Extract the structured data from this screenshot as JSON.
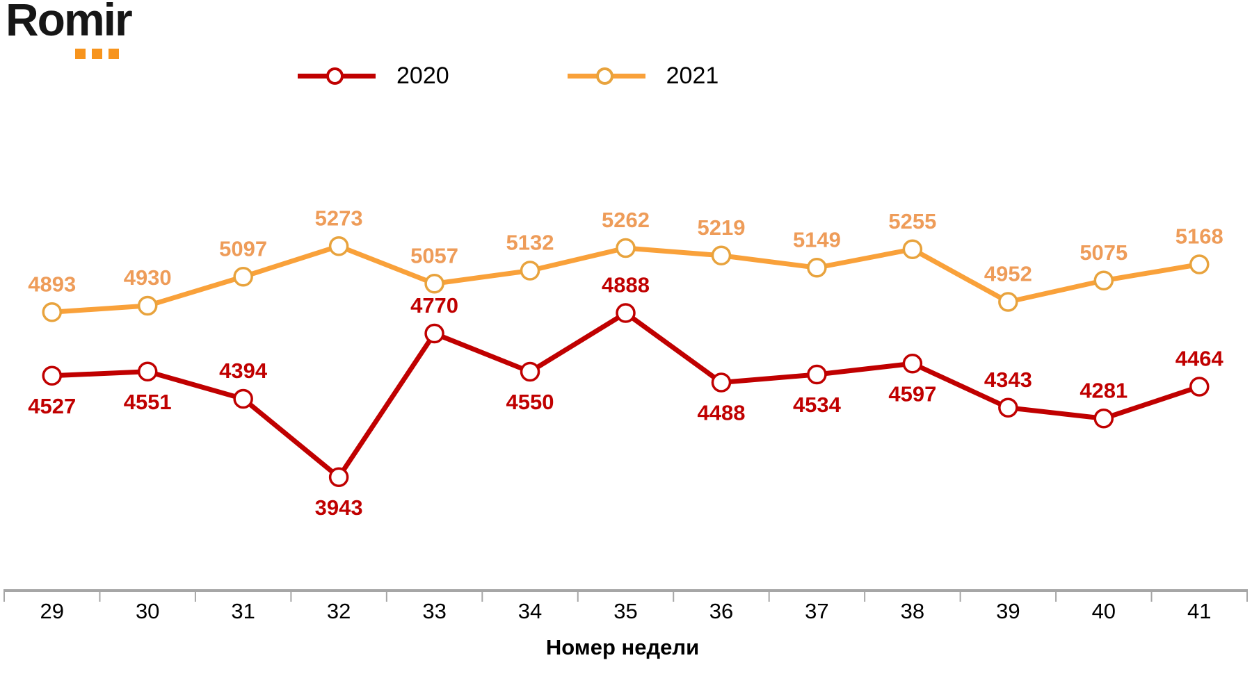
{
  "logo": {
    "text": "Romir",
    "accent_color": "#F7941D"
  },
  "legend": [
    {
      "label": "2020",
      "color": "#C00000",
      "marker_color": "#C00000"
    },
    {
      "label": "2021",
      "color": "#F9A13A",
      "marker_color": "#E8A33D"
    }
  ],
  "chart_data": {
    "type": "line",
    "x": [
      29,
      30,
      31,
      32,
      33,
      34,
      35,
      36,
      37,
      38,
      39,
      40,
      41
    ],
    "xlabel": "Номер недели",
    "ylabel": "",
    "ylim": [
      3650,
      5650
    ],
    "grid": false,
    "legend_position": "top-center",
    "axis_color": "#A6A6A6",
    "series": [
      {
        "name": "2020",
        "color": "#C00000",
        "marker_color": "#C00000",
        "label_color": "#C00000",
        "values": [
          4527,
          4551,
          4394,
          3943,
          4770,
          4550,
          4888,
          4488,
          4534,
          4597,
          4343,
          4281,
          4464
        ],
        "label_positions": [
          "below",
          "below",
          "above",
          "below",
          "above",
          "below",
          "above",
          "below",
          "below",
          "below",
          "above",
          "above",
          "above"
        ]
      },
      {
        "name": "2021",
        "color": "#F9A13A",
        "marker_color": "#E8A33D",
        "label_color": "#EE9C59",
        "values": [
          4893,
          4930,
          5097,
          5273,
          5057,
          5132,
          5262,
          5219,
          5149,
          5255,
          4952,
          5075,
          5168
        ],
        "label_positions": [
          "above",
          "above",
          "above",
          "above",
          "above",
          "above",
          "above",
          "above",
          "above",
          "above",
          "above",
          "above",
          "above"
        ]
      }
    ]
  }
}
